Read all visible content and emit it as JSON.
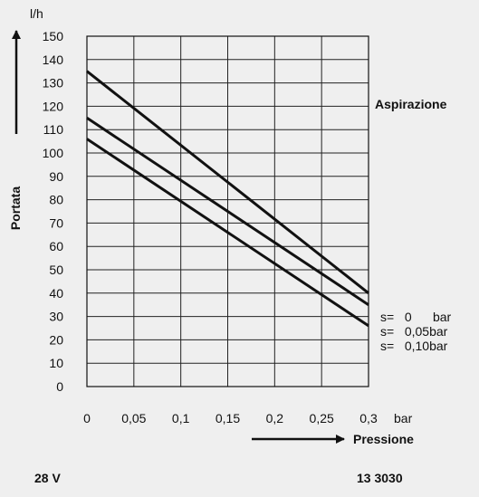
{
  "chart_data": {
    "type": "line",
    "title": "",
    "xlabel": "Pressione",
    "x_unit": "bar",
    "ylabel": "Portata",
    "y_unit": "l/h",
    "xlim": [
      0,
      0.3
    ],
    "ylim": [
      0,
      150
    ],
    "grid": true,
    "x_ticks": [
      "0",
      "0,05",
      "0,1",
      "0,15",
      "0,2",
      "0,25",
      "0,3"
    ],
    "y_ticks": [
      "0",
      "10",
      "20",
      "30",
      "40",
      "50",
      "60",
      "70",
      "80",
      "90",
      "100",
      "110",
      "120",
      "130",
      "140",
      "150"
    ],
    "annotation": "Aspirazione",
    "series": [
      {
        "name": "s=   0      bar",
        "x": [
          0,
          0.3
        ],
        "y": [
          135,
          40
        ],
        "color": "#111111"
      },
      {
        "name": "s=   0,05bar",
        "x": [
          0,
          0.3
        ],
        "y": [
          115,
          35
        ],
        "color": "#111111"
      },
      {
        "name": "s=   0,10bar",
        "x": [
          0,
          0.3
        ],
        "y": [
          106,
          26
        ],
        "color": "#111111"
      }
    ]
  },
  "footer": {
    "voltage": "28 V",
    "code": "13 3030"
  }
}
